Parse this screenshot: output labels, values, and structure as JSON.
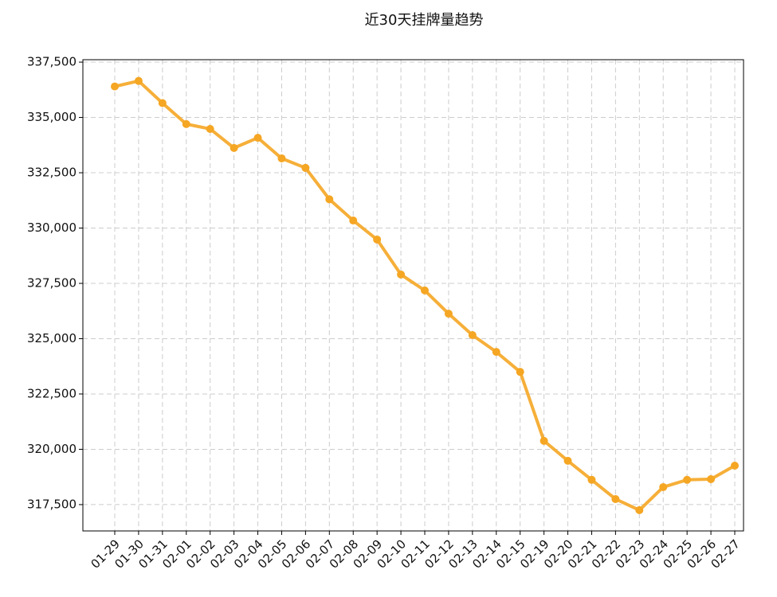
{
  "chart_data": {
    "type": "line",
    "title": "近30天挂牌量趋势",
    "categories": [
      "01-29",
      "01-30",
      "01-31",
      "02-01",
      "02-02",
      "02-03",
      "02-04",
      "02-05",
      "02-06",
      "02-07",
      "02-08",
      "02-09",
      "02-10",
      "02-11",
      "02-12",
      "02-13",
      "02-14",
      "02-15",
      "02-19",
      "02-20",
      "02-21",
      "02-22",
      "02-23",
      "02-24",
      "02-25",
      "02-26",
      "02-27"
    ],
    "series": [
      {
        "name": "挂牌量",
        "color": "#f5a623",
        "values": [
          336400,
          336650,
          335650,
          334700,
          334480,
          333620,
          334080,
          333150,
          332720,
          331300,
          330340,
          329480,
          327900,
          327180,
          326130,
          325160,
          324400,
          323500,
          320380,
          319480,
          318620,
          317750,
          317250,
          318290,
          318620,
          318650,
          319260
        ]
      }
    ],
    "ylim": [
      316310,
      337610
    ],
    "yticks": [
      {
        "value": 317500,
        "label": "317,500"
      },
      {
        "value": 320000,
        "label": "320,000"
      },
      {
        "value": 322500,
        "label": "322,500"
      },
      {
        "value": 325000,
        "label": "325,000"
      },
      {
        "value": 327500,
        "label": "327,500"
      },
      {
        "value": 330000,
        "label": "330,000"
      },
      {
        "value": 332500,
        "label": "332,500"
      },
      {
        "value": 335000,
        "label": "335,000"
      },
      {
        "value": 337500,
        "label": "337,500"
      }
    ],
    "grid": true
  }
}
